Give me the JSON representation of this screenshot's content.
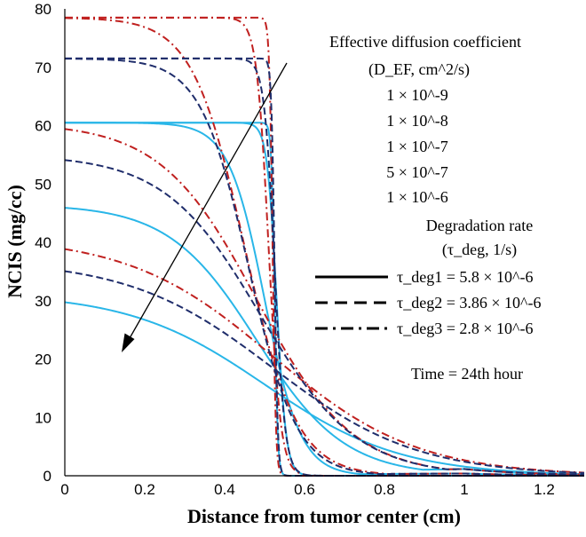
{
  "chart_data": {
    "type": "line",
    "xlabel": "Distance from tumor center (cm)",
    "ylabel": "NCIS (mg/cc)",
    "xlim": [
      0,
      1.3
    ],
    "ylim": [
      0,
      80
    ],
    "x_ticks": [
      "0",
      "0.2",
      "0.4",
      "0.6",
      "0.8",
      "1",
      "1.2"
    ],
    "y_ticks": [
      "0",
      "10",
      "20",
      "30",
      "40",
      "50",
      "60",
      "70",
      "80"
    ],
    "colors": {
      "solid": "#29b6e8",
      "dash": "#1f2d6b",
      "dashdot": "#c0201f",
      "axis": "#000000"
    },
    "annotations": {
      "diffusion_title": "Effective diffusion coefficient",
      "diffusion_unit": "(D_EF, cm^2/s)",
      "diffusion_values": [
        "1 × 10^-9",
        "1 × 10^-8",
        "1 × 10^-7",
        "5 × 10^-7",
        "1 × 10^-6"
      ],
      "degradation_title": "Degradation rate",
      "degradation_unit": "(τ_deg, 1/s)",
      "legend": [
        {
          "style": "solid",
          "label": "τ_deg1 = 5.8 × 10^-6"
        },
        {
          "style": "dash",
          "label": "τ_deg2 = 3.86 × 10^-6"
        },
        {
          "style": "dashdot",
          "label": "τ_deg3 = 2.8 × 10^-6"
        }
      ],
      "time": "Time = 24th hour"
    },
    "series": [
      {
        "name": "τ_deg1, D=1e-9",
        "style": "solid",
        "c0": 60.5,
        "r0": 0.525,
        "w": 0.004,
        "tail": 0
      },
      {
        "name": "τ_deg1, D=1e-8",
        "style": "solid",
        "c0": 60.5,
        "r0": 0.53,
        "w": 0.012,
        "tail": 0
      },
      {
        "name": "τ_deg1, D=1e-7",
        "style": "solid",
        "c0": 60.5,
        "r0": 0.5,
        "w": 0.045,
        "tail": 0.5
      },
      {
        "name": "τ_deg1, D=5e-7",
        "style": "solid",
        "c0": 46.5,
        "r0": 0.48,
        "w": 0.11,
        "tail": 1.5
      },
      {
        "name": "τ_deg1, D=1e-6",
        "style": "solid",
        "c0": 31.3,
        "r0": 0.5,
        "w": 0.17,
        "tail": 2
      },
      {
        "name": "τ_deg2, D=1e-9",
        "style": "dash",
        "c0": 71.5,
        "r0": 0.525,
        "w": 0.004,
        "tail": 0
      },
      {
        "name": "τ_deg2, D=1e-8",
        "style": "dash",
        "c0": 71.5,
        "r0": 0.525,
        "w": 0.013,
        "tail": 0
      },
      {
        "name": "τ_deg2, D=1e-7",
        "style": "dash",
        "c0": 71.5,
        "r0": 0.46,
        "w": 0.06,
        "tail": 0.5
      },
      {
        "name": "τ_deg2, D=5e-7",
        "style": "dash",
        "c0": 55,
        "r0": 0.49,
        "w": 0.12,
        "tail": 1.5
      },
      {
        "name": "τ_deg2, D=1e-6",
        "style": "dash",
        "c0": 37,
        "r0": 0.52,
        "w": 0.18,
        "tail": 2
      },
      {
        "name": "τ_deg3, D=1e-9",
        "style": "dashdot",
        "c0": 78.5,
        "r0": 0.52,
        "w": 0.004,
        "tail": 0
      },
      {
        "name": "τ_deg3, D=1e-8",
        "style": "dashdot",
        "c0": 78.5,
        "r0": 0.51,
        "w": 0.015,
        "tail": 0
      },
      {
        "name": "τ_deg3, D=1e-7",
        "style": "dashdot",
        "c0": 78.5,
        "r0": 0.45,
        "w": 0.065,
        "tail": 0.5
      },
      {
        "name": "τ_deg3, D=5e-7",
        "style": "dashdot",
        "c0": 60.5,
        "r0": 0.48,
        "w": 0.12,
        "tail": 1.5
      },
      {
        "name": "τ_deg3, D=1e-6",
        "style": "dashdot",
        "c0": 41,
        "r0": 0.52,
        "w": 0.18,
        "tail": 2
      }
    ]
  }
}
